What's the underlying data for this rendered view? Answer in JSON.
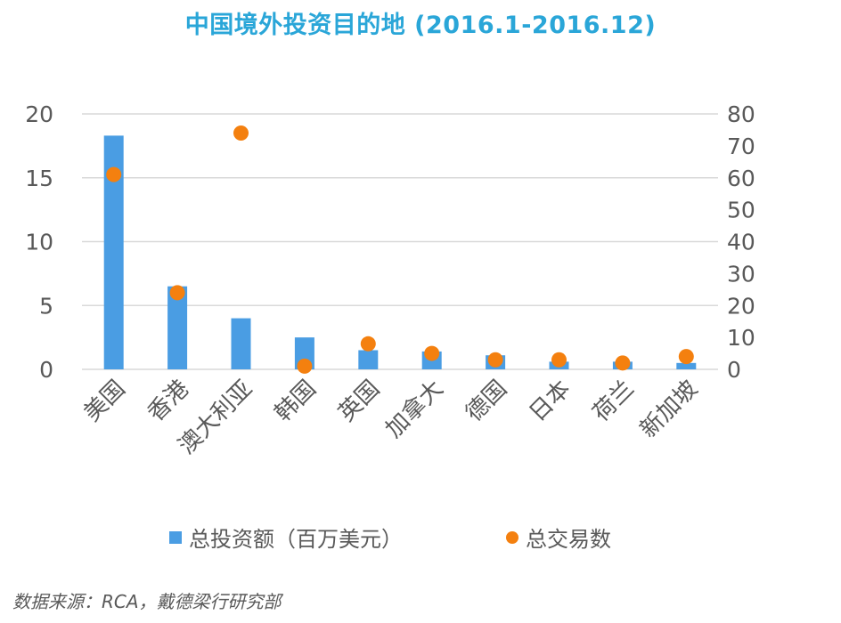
{
  "chart_data": {
    "type": "bar",
    "title": "中国境外投资目的地 (2016.1-2016.12)",
    "categories": [
      "美国",
      "香港",
      "澳大利亚",
      "韩国",
      "英国",
      "加拿大",
      "德国",
      "日本",
      "荷兰",
      "新加坡"
    ],
    "series": [
      {
        "name": "总投资额（百万美元）",
        "type": "bar",
        "axis": "left",
        "color": "#4a9de3",
        "values": [
          18.3,
          6.5,
          4.0,
          2.5,
          1.5,
          1.4,
          1.1,
          0.6,
          0.6,
          0.5
        ]
      },
      {
        "name": "总交易数",
        "type": "scatter",
        "axis": "right",
        "color": "#f4800f",
        "values": [
          61,
          24,
          74,
          1,
          8,
          5,
          3,
          3,
          2,
          4
        ]
      }
    ],
    "ylim_left": [
      0,
      20
    ],
    "yticks_left": [
      "0",
      "5",
      "10",
      "15",
      "20"
    ],
    "ylim_right": [
      0,
      80
    ],
    "yticks_right": [
      "0",
      "10",
      "20",
      "30",
      "40",
      "50",
      "60",
      "70",
      "80"
    ],
    "grid": true,
    "legend_position": "bottom"
  },
  "source": "数据来源：RCA，戴德梁行研究部"
}
